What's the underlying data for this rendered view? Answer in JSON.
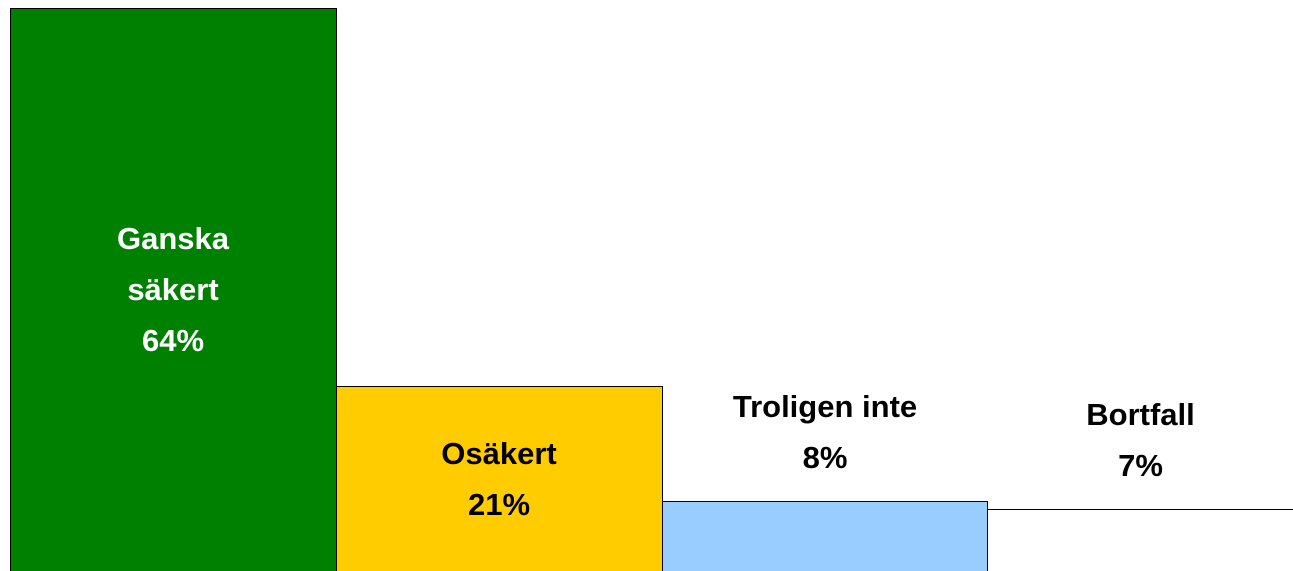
{
  "chart_data": {
    "type": "bar",
    "categories": [
      "Ganska säkert",
      "Osäkert",
      "Troligen inte",
      "Bortfall"
    ],
    "values": [
      64,
      21,
      8,
      7
    ],
    "value_labels": [
      "64%",
      "21%",
      "8%",
      "7%"
    ],
    "colors": [
      "#008000",
      "#ffcc00",
      "#99ccff",
      "#ffffff"
    ],
    "ylim": [
      0,
      64
    ]
  }
}
